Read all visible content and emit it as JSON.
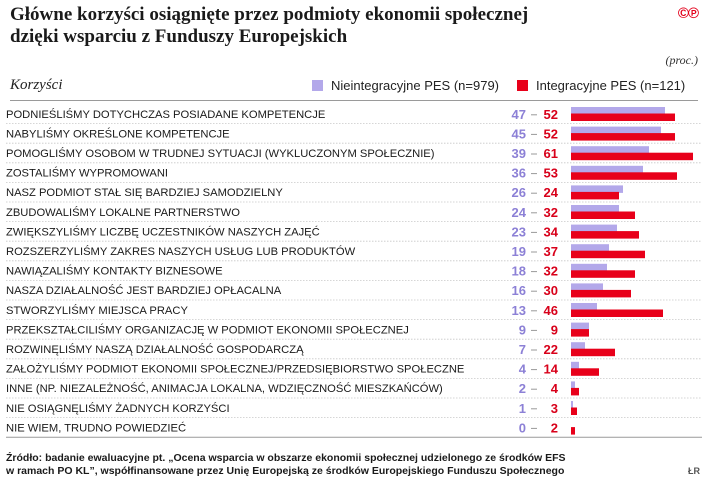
{
  "header": {
    "title_line1": "Główne korzyści osiągnięte przez podmioty ekonomii społecznej",
    "title_line2": "dzięki wsparciu z Funduszy Europejskich",
    "logo": "©℗",
    "unit": "(proc.)",
    "section_label": "Korzyści"
  },
  "legend": {
    "a": "Nieintegracyjne PES (n=979)",
    "b": "Integracyjne PES (n=121)"
  },
  "colors": {
    "series_a": "#b3a8ea",
    "series_b": "#e8001a",
    "value_a_text": "#8c80d6",
    "value_b_text": "#d8001a",
    "row_divider": "#c8c8c8"
  },
  "chart_data": {
    "type": "bar",
    "orientation": "horizontal",
    "categories": [
      "PODNIEŚLIŚMY DOTYCHCZAS POSIADANE KOMPETENCJE",
      "NABYLIŚMY OKREŚLONE KOMPETENCJE",
      "POMOGLIŚMY OSOBOM W TRUDNEJ SYTUACJI (WYKLUCZONYM SPOŁECZNIE)",
      "ZOSTALIŚMY WYPROMOWANI",
      "NASZ PODMIOT STAŁ SIĘ BARDZIEJ SAMODZIELNY",
      "ZBUDOWALIŚMY LOKALNE PARTNERSTWO",
      "ZWIĘKSZYLIŚMY LICZBĘ UCZESTNIKÓW NASZYCH ZAJĘĆ",
      "ROZSZERZYLIŚMY ZAKRES NASZYCH USŁUG LUB PRODUKTÓW",
      "NAWIĄZALIŚMY KONTAKTY BIZNESOWE",
      "NASZA DZIAŁALNOŚĆ JEST BARDZIEJ OPŁACALNA",
      "STWORZYLIŚMY MIEJSCA PRACY",
      "PRZEKSZTAŁCILIŚMY ORGANIZACJĘ W PODMIOT EKONOMII SPOŁECZNEJ",
      "ROZWINĘLIŚMY NASZĄ DZIAŁALNOŚĆ GOSPODARCZĄ",
      "ZAŁOŻYLIŚMY PODMIOT EKONOMII SPOŁECZNEJ/PRZEDSIĘBIORSTWO SPOŁECZNE",
      "INNE (NP. NIEZALEŻNOŚĆ, ANIMACJA LOKALNA, WDZIĘCZNOŚĆ MIESZKAŃCÓW)",
      "NIE OSIĄGNĘLIŚMY ŻADNYCH KORZYŚCI",
      "NIE WIEM, TRUDNO POWIEDZIEĆ"
    ],
    "series": [
      {
        "name": "Nieintegracyjne PES (n=979)",
        "values": [
          47,
          45,
          39,
          36,
          26,
          24,
          23,
          19,
          18,
          16,
          13,
          9,
          7,
          4,
          2,
          1,
          0
        ]
      },
      {
        "name": "Integracyjne PES (n=121)",
        "values": [
          52,
          52,
          61,
          53,
          24,
          32,
          34,
          37,
          32,
          30,
          46,
          9,
          22,
          14,
          4,
          3,
          2
        ]
      }
    ],
    "xlim": [
      0,
      61
    ],
    "legend_position": "top-right",
    "grid": false
  },
  "footer": {
    "source_line1": "Źródło: badanie ewaluacyjne pt. „Ocena wsparcia w obszarze ekonomii społecznej udzielonego ze środków EFS",
    "source_line2": "w ramach PO KL”, współfinansowane przez Unię Europejską ze środków Europejskiego Funduszu Społecznego",
    "credit": "ŁR"
  }
}
